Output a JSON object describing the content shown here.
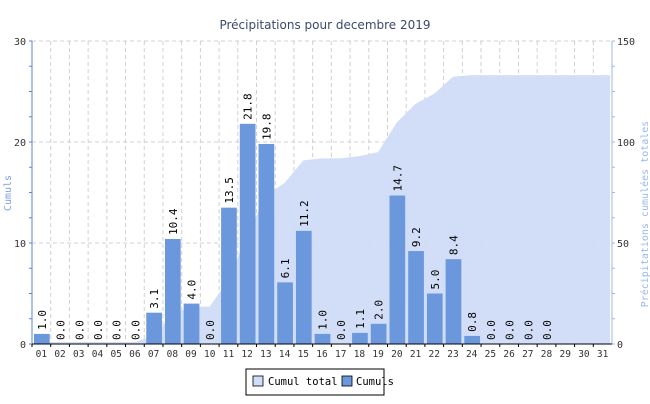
{
  "chart_data": {
    "type": "bar",
    "title": "Précipitations pour decembre 2019",
    "ylabel": "Cumuls",
    "y2label": "Précipitations cumulées totales",
    "ylim": [
      0,
      30
    ],
    "y2lim": [
      0,
      150
    ],
    "yticks": [
      0,
      10,
      20,
      30
    ],
    "y2ticks": [
      0,
      50,
      100,
      150
    ],
    "grid": true,
    "legend_position": "bottom-center",
    "categories": [
      "01",
      "02",
      "03",
      "04",
      "05",
      "06",
      "07",
      "08",
      "09",
      "10",
      "11",
      "12",
      "13",
      "14",
      "15",
      "16",
      "17",
      "18",
      "19",
      "20",
      "21",
      "22",
      "23",
      "24",
      "25",
      "26",
      "27",
      "28",
      "29",
      "30",
      "31"
    ],
    "series": [
      {
        "name": "Cumul total",
        "type": "area",
        "axis": "right",
        "color": "#d0dcf8",
        "values": [
          1.0,
          1.0,
          1.0,
          1.0,
          1.0,
          1.0,
          4.1,
          14.5,
          18.5,
          18.5,
          32.0,
          53.8,
          73.6,
          79.7,
          90.9,
          91.9,
          91.9,
          93.0,
          95.0,
          109.7,
          118.9,
          123.9,
          132.3,
          133.1,
          133.1,
          133.1,
          133.1,
          133.1,
          133.1,
          133.1,
          133.1
        ]
      },
      {
        "name": "Cumuls",
        "type": "bar",
        "axis": "left",
        "color": "#6b97dc",
        "values": [
          1.0,
          0.0,
          0.0,
          0.0,
          0.0,
          0.0,
          3.1,
          10.4,
          4.0,
          0.0,
          13.5,
          21.8,
          19.8,
          6.1,
          11.2,
          1.0,
          0.0,
          1.1,
          2.0,
          14.7,
          9.2,
          5.0,
          8.4,
          0.8,
          0.0,
          0.0,
          0.0,
          0.0,
          null,
          null,
          null
        ],
        "labels": [
          "1.0",
          "0.0",
          "0.0",
          "0.0",
          "0.0",
          "0.0",
          "3.1",
          "10.4",
          "4.0",
          "0.0",
          "13.5",
          "21.8",
          "19.8",
          "6.1",
          "11.2",
          "1.0",
          "0.0",
          "1.1",
          "2.0",
          "14.7",
          "9.2",
          "5.0",
          "8.4",
          "0.8",
          "0.0",
          "0.0",
          "0.0",
          "0.0",
          "",
          "",
          ""
        ]
      }
    ]
  }
}
